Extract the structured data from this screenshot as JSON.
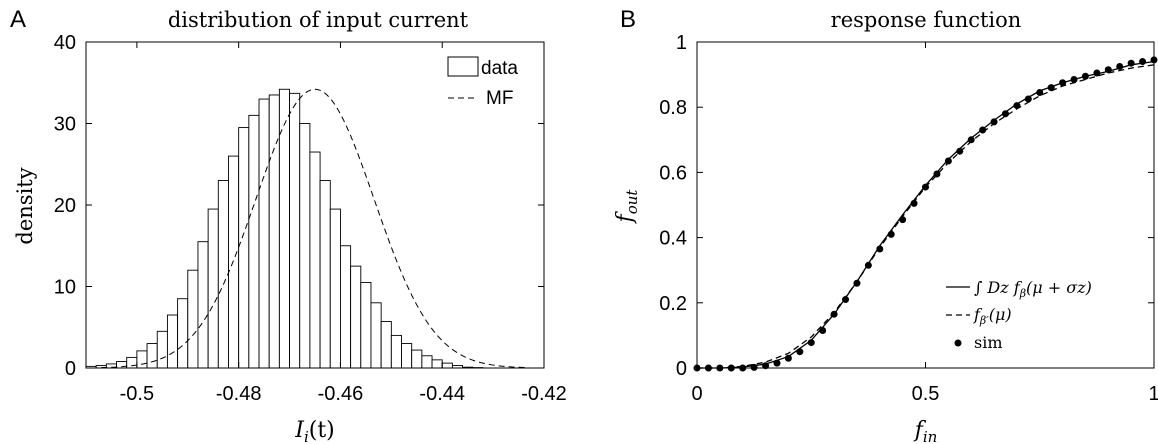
{
  "chart_data": [
    {
      "panel_letter": "A",
      "type": "bar",
      "title": "distribution of input current",
      "xlabel": "I",
      "xlabel_sub": "i",
      "xlabel_tail": "(t)",
      "ylabel": "density",
      "xlim": [
        -0.51,
        -0.42
      ],
      "ylim": [
        0,
        40
      ],
      "xticks": [
        -0.5,
        -0.48,
        -0.46,
        -0.44,
        -0.42
      ],
      "xtick_labels": [
        "-0.5",
        "-0.48",
        "-0.46",
        "-0.44",
        "-0.42"
      ],
      "yticks": [
        0,
        10,
        20,
        30,
        40
      ],
      "ytick_labels": [
        "0",
        "10",
        "20",
        "30",
        "40"
      ],
      "grid": false,
      "legend_position": "top-right",
      "series": [
        {
          "name": "data",
          "kind": "histogram",
          "bin_width": 0.002,
          "bin_start": -0.51,
          "values": [
            0.2,
            0.3,
            0.5,
            0.8,
            1.3,
            2.1,
            3.0,
            4.5,
            6.5,
            8.5,
            12.0,
            15.5,
            19.5,
            23.0,
            26.0,
            29.5,
            31.0,
            33.0,
            33.5,
            34.2,
            33.7,
            30.0,
            26.5,
            23.0,
            19.5,
            15.0,
            12.5,
            10.5,
            8.0,
            5.7,
            4.0,
            3.0,
            2.2,
            1.5,
            1.0,
            0.6,
            0.3,
            0.1,
            0.05
          ]
        },
        {
          "name": "MF",
          "kind": "gaussian-dashed",
          "mean": -0.465,
          "sd": 0.0116
        }
      ],
      "legend": [
        "data",
        "MF"
      ]
    },
    {
      "panel_letter": "B",
      "type": "line",
      "title": "response function",
      "xlabel": "f",
      "xlabel_sub": "in",
      "ylabel": "f",
      "ylabel_sub": "out",
      "xlim": [
        0,
        1
      ],
      "ylim": [
        0,
        1
      ],
      "xticks": [
        0,
        0.5,
        1
      ],
      "xtick_labels": [
        "0",
        "0.5",
        "1"
      ],
      "yticks": [
        0,
        0.2,
        0.4,
        0.6,
        0.8,
        1
      ],
      "ytick_labels": [
        "0",
        "0.2",
        "0.4",
        "0.6",
        "0.8",
        "1"
      ],
      "grid": false,
      "legend_position": "bottom-right",
      "legend": [
        "∫ Dz f",
        "β",
        "(μ + σz)",
        "f",
        "β′",
        "(μ)",
        "sim"
      ],
      "series": [
        {
          "name": "∫ Dz fβ(μ + σz)",
          "kind": "solid",
          "x": [
            0,
            0.05,
            0.1,
            0.15,
            0.2,
            0.25,
            0.3,
            0.35,
            0.4,
            0.45,
            0.5,
            0.55,
            0.6,
            0.65,
            0.7,
            0.75,
            0.8,
            0.85,
            0.9,
            0.95,
            1.0
          ],
          "y": [
            0.0,
            0.0,
            0.003,
            0.012,
            0.035,
            0.085,
            0.165,
            0.265,
            0.375,
            0.47,
            0.56,
            0.64,
            0.705,
            0.76,
            0.81,
            0.85,
            0.875,
            0.895,
            0.91,
            0.93,
            0.94
          ]
        },
        {
          "name": "fβ′(μ)",
          "kind": "dashed",
          "x": [
            0,
            0.05,
            0.1,
            0.15,
            0.2,
            0.25,
            0.3,
            0.35,
            0.4,
            0.45,
            0.5,
            0.55,
            0.6,
            0.65,
            0.7,
            0.75,
            0.8,
            0.85,
            0.9,
            0.95,
            1.0
          ],
          "y": [
            0.0,
            0.0,
            0.005,
            0.018,
            0.045,
            0.095,
            0.17,
            0.265,
            0.37,
            0.465,
            0.555,
            0.63,
            0.695,
            0.75,
            0.795,
            0.835,
            0.865,
            0.885,
            0.905,
            0.92,
            0.93
          ]
        },
        {
          "name": "sim",
          "kind": "markers",
          "x": [
            0,
            0.025,
            0.05,
            0.075,
            0.1,
            0.125,
            0.15,
            0.175,
            0.2,
            0.225,
            0.25,
            0.275,
            0.3,
            0.325,
            0.35,
            0.375,
            0.4,
            0.425,
            0.45,
            0.475,
            0.5,
            0.525,
            0.55,
            0.575,
            0.6,
            0.625,
            0.65,
            0.675,
            0.7,
            0.725,
            0.75,
            0.775,
            0.8,
            0.825,
            0.85,
            0.875,
            0.9,
            0.925,
            0.95,
            0.975,
            1.0
          ],
          "y": [
            0.0,
            0.0,
            0.0,
            0.0,
            0.0,
            0.002,
            0.007,
            0.015,
            0.03,
            0.05,
            0.078,
            0.115,
            0.165,
            0.21,
            0.26,
            0.315,
            0.365,
            0.41,
            0.455,
            0.505,
            0.555,
            0.595,
            0.635,
            0.665,
            0.7,
            0.73,
            0.755,
            0.78,
            0.805,
            0.825,
            0.845,
            0.86,
            0.875,
            0.885,
            0.895,
            0.905,
            0.915,
            0.925,
            0.935,
            0.94,
            0.945
          ]
        }
      ]
    }
  ]
}
